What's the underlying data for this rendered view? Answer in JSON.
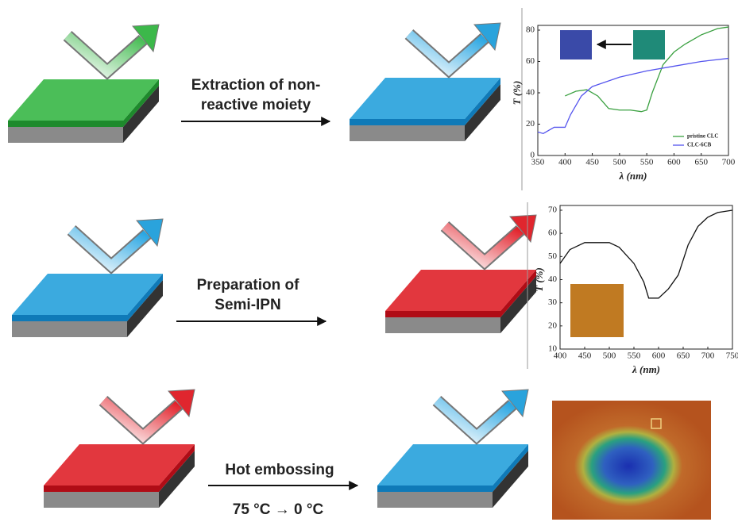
{
  "steps": [
    {
      "label_lines": [
        "Extraction of non-",
        "reactive moiety"
      ]
    },
    {
      "label_lines": [
        "Preparation of",
        "Semi-IPN"
      ]
    },
    {
      "label_lines": [
        "Hot embossing"
      ],
      "condition": "75 °C → 0 °C"
    }
  ],
  "chart_data": [
    {
      "type": "line",
      "x_label": "λ (nm)",
      "y_label": "T (%)",
      "xlim": [
        350,
        700
      ],
      "xticks": [
        350,
        400,
        450,
        500,
        550,
        600,
        650,
        700
      ],
      "ylim": [
        0,
        80
      ],
      "yticks": [
        0,
        20,
        40,
        60,
        80
      ],
      "legend": "lower right",
      "series": [
        {
          "name": "pristine CLC",
          "color": "#3aa040",
          "x": [
            400,
            420,
            440,
            460,
            480,
            500,
            520,
            540,
            550,
            560,
            580,
            600,
            620,
            650,
            680,
            700
          ],
          "values": [
            38,
            41,
            42,
            38,
            30,
            29,
            29,
            28,
            29,
            40,
            58,
            66,
            71,
            77,
            81,
            82
          ]
        },
        {
          "name": "CLC-6CB",
          "color": "#5555ee",
          "x": [
            350,
            360,
            380,
            400,
            410,
            430,
            450,
            500,
            550,
            600,
            650,
            700
          ],
          "values": [
            15,
            14,
            18,
            18,
            26,
            38,
            44,
            50,
            54,
            57,
            60,
            62
          ]
        }
      ]
    },
    {
      "type": "line",
      "x_label": "λ (nm)",
      "y_label": "T (%)",
      "xlim": [
        400,
        750
      ],
      "xticks": [
        400,
        450,
        500,
        550,
        600,
        650,
        700,
        750
      ],
      "ylim": [
        10,
        70
      ],
      "yticks": [
        10,
        20,
        30,
        40,
        50,
        60,
        70
      ],
      "series": [
        {
          "color": "#111111",
          "x": [
            400,
            420,
            450,
            480,
            500,
            520,
            550,
            570,
            580,
            600,
            620,
            640,
            660,
            680,
            700,
            720,
            750
          ],
          "values": [
            47,
            53,
            56,
            56,
            56,
            54,
            47,
            39,
            32,
            32,
            36,
            42,
            55,
            63,
            67,
            69,
            70
          ]
        }
      ]
    }
  ]
}
